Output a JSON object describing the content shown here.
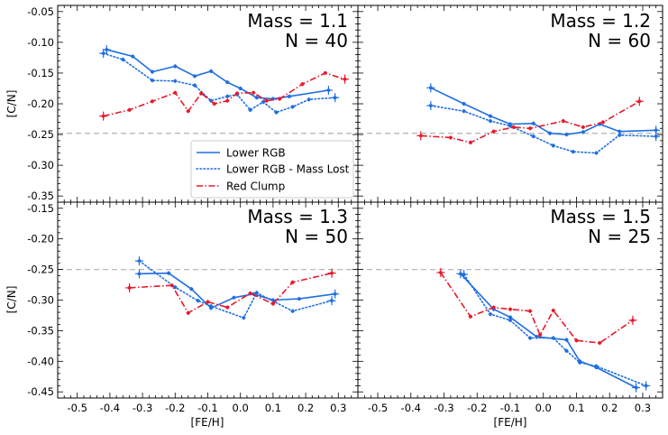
{
  "figure": {
    "xlabel": "[FE/H]",
    "ylabel": "[C/N]"
  },
  "colors": {
    "lower_rgb": "#1f6fe0",
    "mass_lost": "#1f6fe0",
    "red_clump": "#e8182a",
    "ref_line": "#b8b8b8"
  },
  "legend": {
    "lower_rgb": "Lower RGB",
    "mass_lost": "Lower RGB - Mass Lost",
    "red_clump": "Red Clump"
  },
  "chart_data": [
    {
      "type": "line",
      "title": "Mass = 1.1",
      "subtitle": "N = 40",
      "xlim": [
        -0.56,
        0.36
      ],
      "ylim": [
        -0.36,
        -0.04
      ],
      "yticks": [
        "-0.35",
        "-0.30",
        "-0.25",
        "-0.20",
        "-0.15",
        "-0.10",
        "-0.05"
      ],
      "xticks": [],
      "reference_y": -0.248,
      "series": [
        {
          "name": "Lower RGB",
          "style": "solid",
          "x": [
            -0.41,
            -0.33,
            -0.27,
            -0.2,
            -0.14,
            -0.09,
            -0.04,
            0.0,
            0.05,
            0.1,
            0.15,
            0.27
          ],
          "y": [
            -0.112,
            -0.123,
            -0.148,
            -0.139,
            -0.155,
            -0.147,
            -0.165,
            -0.175,
            -0.19,
            -0.192,
            -0.188,
            -0.178
          ]
        },
        {
          "name": "Lower RGB - Mass Lost",
          "style": "dotted",
          "x": [
            -0.42,
            -0.36,
            -0.27,
            -0.2,
            -0.14,
            -0.09,
            -0.04,
            -0.01,
            0.03,
            0.07,
            0.11,
            0.16,
            0.21,
            0.29
          ],
          "y": [
            -0.118,
            -0.128,
            -0.162,
            -0.163,
            -0.17,
            -0.195,
            -0.188,
            -0.185,
            -0.21,
            -0.197,
            -0.214,
            -0.205,
            -0.193,
            -0.19
          ]
        },
        {
          "name": "Red Clump",
          "style": "dashdot",
          "x": [
            -0.42,
            -0.34,
            -0.27,
            -0.2,
            -0.16,
            -0.12,
            -0.08,
            -0.04,
            -0.01,
            0.04,
            0.08,
            0.12,
            0.19,
            0.26,
            0.32
          ],
          "y": [
            -0.22,
            -0.21,
            -0.196,
            -0.182,
            -0.212,
            -0.183,
            -0.2,
            -0.195,
            -0.183,
            -0.182,
            -0.195,
            -0.192,
            -0.168,
            -0.15,
            -0.16
          ]
        }
      ]
    },
    {
      "type": "line",
      "title": "Mass = 1.2",
      "subtitle": "N = 60",
      "xlim": [
        -0.56,
        0.36
      ],
      "ylim": [
        -0.36,
        -0.04
      ],
      "yticks": [],
      "xticks": [],
      "reference_y": -0.248,
      "series": [
        {
          "name": "Lower RGB",
          "style": "solid",
          "x": [
            -0.34,
            -0.24,
            -0.16,
            -0.1,
            -0.03,
            0.02,
            0.07,
            0.12,
            0.17,
            0.23,
            0.34
          ],
          "y": [
            -0.174,
            -0.2,
            -0.22,
            -0.233,
            -0.232,
            -0.248,
            -0.25,
            -0.246,
            -0.233,
            -0.245,
            -0.243
          ]
        },
        {
          "name": "Lower RGB - Mass Lost",
          "style": "dotted",
          "x": [
            -0.34,
            -0.24,
            -0.16,
            -0.1,
            -0.03,
            0.03,
            0.09,
            0.16,
            0.23,
            0.34
          ],
          "y": [
            -0.203,
            -0.212,
            -0.228,
            -0.236,
            -0.253,
            -0.268,
            -0.278,
            -0.28,
            -0.251,
            -0.253
          ]
        },
        {
          "name": "Red Clump",
          "style": "dashdot",
          "x": [
            -0.37,
            -0.28,
            -0.22,
            -0.15,
            -0.09,
            -0.04,
            0.06,
            0.12,
            0.18,
            0.29
          ],
          "y": [
            -0.252,
            -0.255,
            -0.263,
            -0.245,
            -0.238,
            -0.24,
            -0.228,
            -0.238,
            -0.23,
            -0.196
          ]
        }
      ]
    },
    {
      "type": "line",
      "title": "Mass = 1.3",
      "subtitle": "N = 50",
      "xlim": [
        -0.56,
        0.36
      ],
      "ylim": [
        -0.46,
        -0.14
      ],
      "yticks": [
        "-0.45",
        "-0.40",
        "-0.35",
        "-0.30",
        "-0.25",
        "-0.20",
        "-0.15"
      ],
      "xticks": [
        "-0.5",
        "-0.4",
        "-0.3",
        "-0.2",
        "-0.1",
        "0.0",
        "0.1",
        "0.2",
        "0.3"
      ],
      "reference_y": -0.25,
      "series": [
        {
          "name": "Lower RGB",
          "style": "solid",
          "x": [
            -0.31,
            -0.22,
            -0.15,
            -0.09,
            -0.02,
            0.04,
            0.1,
            0.18,
            0.29
          ],
          "y": [
            -0.257,
            -0.256,
            -0.282,
            -0.313,
            -0.296,
            -0.29,
            -0.3,
            -0.298,
            -0.29
          ]
        },
        {
          "name": "Lower RGB - Mass Lost",
          "style": "dotted",
          "x": [
            -0.31,
            -0.2,
            -0.13,
            -0.09,
            0.01,
            0.05,
            0.16,
            0.28
          ],
          "y": [
            -0.236,
            -0.279,
            -0.301,
            -0.31,
            -0.329,
            -0.288,
            -0.318,
            -0.301
          ]
        },
        {
          "name": "Red Clump",
          "style": "dashdot",
          "x": [
            -0.34,
            -0.21,
            -0.16,
            -0.1,
            -0.04,
            0.03,
            0.1,
            0.16,
            0.28
          ],
          "y": [
            -0.28,
            -0.276,
            -0.321,
            -0.303,
            -0.312,
            -0.289,
            -0.306,
            -0.271,
            -0.256
          ]
        }
      ]
    },
    {
      "type": "line",
      "title": "Mass = 1.5",
      "subtitle": "N = 25",
      "xlim": [
        -0.56,
        0.36
      ],
      "ylim": [
        -0.46,
        -0.14
      ],
      "yticks": [],
      "xticks": [
        "-0.5",
        "-0.4",
        "-0.3",
        "-0.2",
        "-0.1",
        "0.0",
        "0.1",
        "0.2",
        "0.3"
      ],
      "reference_y": -0.25,
      "series": [
        {
          "name": "Lower RGB",
          "style": "solid",
          "x": [
            -0.25,
            -0.15,
            -0.1,
            -0.02,
            0.07,
            0.11,
            0.16,
            0.28
          ],
          "y": [
            -0.257,
            -0.315,
            -0.328,
            -0.36,
            -0.365,
            -0.4,
            -0.41,
            -0.443
          ]
        },
        {
          "name": "Lower RGB - Mass Lost",
          "style": "dotted",
          "x": [
            -0.24,
            -0.16,
            -0.1,
            -0.04,
            0.03,
            0.07,
            0.11,
            0.16,
            0.31
          ],
          "y": [
            -0.258,
            -0.323,
            -0.333,
            -0.362,
            -0.362,
            -0.383,
            -0.402,
            -0.408,
            -0.44
          ]
        },
        {
          "name": "Red Clump",
          "style": "dashdot",
          "x": [
            -0.31,
            -0.22,
            -0.15,
            -0.1,
            -0.04,
            -0.01,
            0.03,
            0.1,
            0.17,
            0.27
          ],
          "y": [
            -0.255,
            -0.327,
            -0.312,
            -0.315,
            -0.318,
            -0.357,
            -0.317,
            -0.366,
            -0.37,
            -0.333
          ]
        }
      ]
    }
  ]
}
